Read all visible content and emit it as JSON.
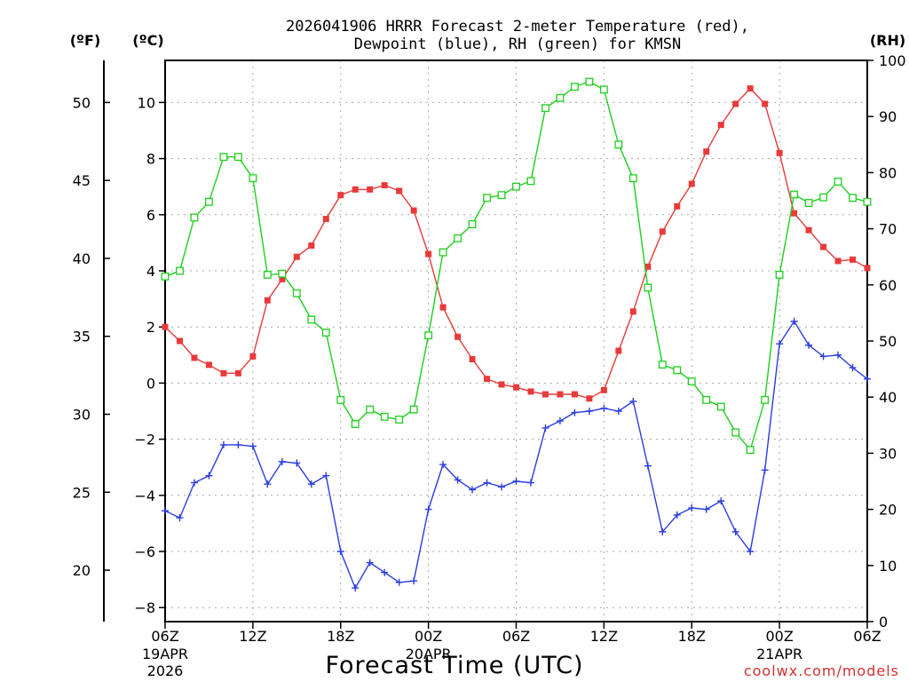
{
  "chart_data": {
    "type": "line",
    "title_line1": "2026041906 HRRR Forecast 2-meter Temperature (red),",
    "title_line2": "Dewpoint (blue), RH (green) for KMSN",
    "xlabel": "Forecast Time (UTC)",
    "credit": "coolwx.com/models",
    "units": {
      "fahrenheit": "(ºF)",
      "celsius": "(ºC)",
      "rh": "(RH)"
    },
    "x_hours": [
      0,
      1,
      2,
      3,
      4,
      5,
      6,
      7,
      8,
      9,
      10,
      11,
      12,
      13,
      14,
      15,
      16,
      17,
      18,
      19,
      20,
      21,
      22,
      23,
      24,
      25,
      26,
      27,
      28,
      29,
      30,
      31,
      32,
      33,
      34,
      35,
      36,
      37,
      38,
      39,
      40,
      41,
      42,
      43,
      44,
      45,
      46,
      47,
      48
    ],
    "xlim": [
      0,
      48
    ],
    "ylim_celsius": [
      -8.5,
      11.5
    ],
    "ylim_rh": [
      0,
      100
    ],
    "x_ticks": [
      {
        "hour": 0,
        "label": "06Z",
        "sub1": "19APR",
        "sub2": "2026"
      },
      {
        "hour": 6,
        "label": "12Z",
        "sub1": "",
        "sub2": ""
      },
      {
        "hour": 12,
        "label": "18Z",
        "sub1": "",
        "sub2": ""
      },
      {
        "hour": 18,
        "label": "00Z",
        "sub1": "20APR",
        "sub2": ""
      },
      {
        "hour": 24,
        "label": "06Z",
        "sub1": "",
        "sub2": ""
      },
      {
        "hour": 30,
        "label": "12Z",
        "sub1": "",
        "sub2": ""
      },
      {
        "hour": 36,
        "label": "18Z",
        "sub1": "",
        "sub2": ""
      },
      {
        "hour": 42,
        "label": "00Z",
        "sub1": "21APR",
        "sub2": ""
      },
      {
        "hour": 48,
        "label": "06Z",
        "sub1": "",
        "sub2": ""
      }
    ],
    "celsius_ticks": [
      "10",
      "8",
      "6",
      "4",
      "2",
      "0",
      "−2",
      "−4",
      "−6",
      "−8"
    ],
    "celsius_tick_values": [
      10,
      8,
      6,
      4,
      2,
      0,
      -2,
      -4,
      -6,
      -8
    ],
    "fahrenheit_ticks": [
      "50",
      "45",
      "40",
      "35",
      "30",
      "25",
      "20"
    ],
    "fahrenheit_tick_values": [
      50,
      45,
      40,
      35,
      30,
      25,
      20
    ],
    "rh_ticks": [
      "100",
      "90",
      "80",
      "70",
      "60",
      "50",
      "40",
      "30",
      "20",
      "10",
      "0"
    ],
    "rh_tick_values": [
      100,
      90,
      80,
      70,
      60,
      50,
      40,
      30,
      20,
      10,
      0
    ],
    "grid": true,
    "series": [
      {
        "name": "Temperature (red)",
        "color": "#e83a3a",
        "marker": "filled-square",
        "axis": "celsius",
        "values": [
          2.0,
          1.5,
          0.9,
          0.65,
          0.35,
          0.35,
          0.95,
          2.95,
          3.7,
          4.5,
          4.9,
          5.85,
          6.7,
          6.9,
          6.9,
          7.05,
          6.85,
          6.15,
          4.6,
          2.7,
          1.65,
          0.85,
          0.15,
          -0.05,
          -0.15,
          -0.3,
          -0.4,
          -0.4,
          -0.4,
          -0.55,
          -0.25,
          1.15,
          2.55,
          4.15,
          5.4,
          6.3,
          7.1,
          8.25,
          9.2,
          9.95,
          10.5,
          9.95,
          8.2,
          6.05,
          5.45,
          4.85,
          4.35,
          4.4,
          4.1
        ]
      },
      {
        "name": "Dewpoint (blue)",
        "color": "#2a3de0",
        "marker": "plus",
        "axis": "celsius",
        "values": [
          -4.55,
          -4.8,
          -3.55,
          -3.3,
          -2.2,
          -2.2,
          -2.25,
          -3.6,
          -2.8,
          -2.85,
          -3.6,
          -3.3,
          -6.0,
          -7.3,
          -6.4,
          -6.75,
          -7.1,
          -7.05,
          -4.5,
          -2.9,
          -3.45,
          -3.8,
          -3.55,
          -3.7,
          -3.5,
          -3.55,
          -1.6,
          -1.35,
          -1.05,
          -1.0,
          -0.9,
          -1.0,
          -0.65,
          -2.95,
          -5.3,
          -4.7,
          -4.45,
          -4.5,
          -4.2,
          -5.3,
          -6.0,
          -3.1,
          1.4,
          2.2,
          1.35,
          0.95,
          1.0,
          0.55,
          0.15
        ]
      },
      {
        "name": "RH (green)",
        "color": "#1ecf1e",
        "marker": "open-square",
        "axis": "rh",
        "values": [
          61.5,
          62.5,
          72,
          74.8,
          82.8,
          82.8,
          79,
          61.8,
          62,
          58.5,
          53.8,
          51.5,
          39.5,
          35.2,
          37.8,
          36.5,
          36,
          37.8,
          51,
          65.8,
          68.3,
          70.8,
          75.5,
          76,
          77.5,
          78.5,
          91.5,
          93.3,
          95.3,
          96.2,
          94.8,
          85,
          79,
          59.5,
          45.8,
          44.8,
          42.8,
          39.5,
          38.3,
          33.7,
          30.6,
          39.5,
          61.8,
          76.1,
          74.6,
          75.6,
          78.4,
          75.5,
          74.8
        ]
      }
    ]
  }
}
